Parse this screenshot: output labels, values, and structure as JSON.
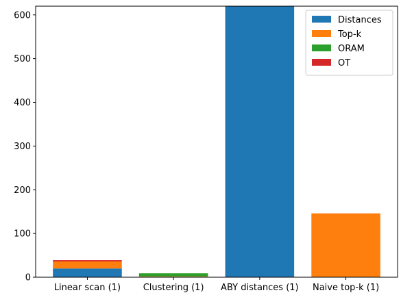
{
  "chart_data": {
    "type": "bar",
    "stacked": true,
    "categories": [
      "Linear scan (1)",
      "Clustering (1)",
      "ABY distances (1)",
      "Naive top-k (1)"
    ],
    "series": [
      {
        "name": "Distances",
        "color": "#1f77b4",
        "values": [
          20,
          1,
          620,
          0
        ]
      },
      {
        "name": "Top-k",
        "color": "#ff7f0e",
        "values": [
          16,
          1,
          0,
          146
        ]
      },
      {
        "name": "ORAM",
        "color": "#2ca02c",
        "values": [
          0,
          7,
          0,
          0
        ]
      },
      {
        "name": "OT",
        "color": "#d62728",
        "values": [
          3,
          0,
          0,
          0
        ]
      }
    ],
    "ylim": [
      0,
      620
    ],
    "yticks": [
      0,
      100,
      200,
      300,
      400,
      500,
      600
    ],
    "title": "",
    "xlabel": "",
    "ylabel": "",
    "legend_position": "top-right",
    "grid": false
  }
}
